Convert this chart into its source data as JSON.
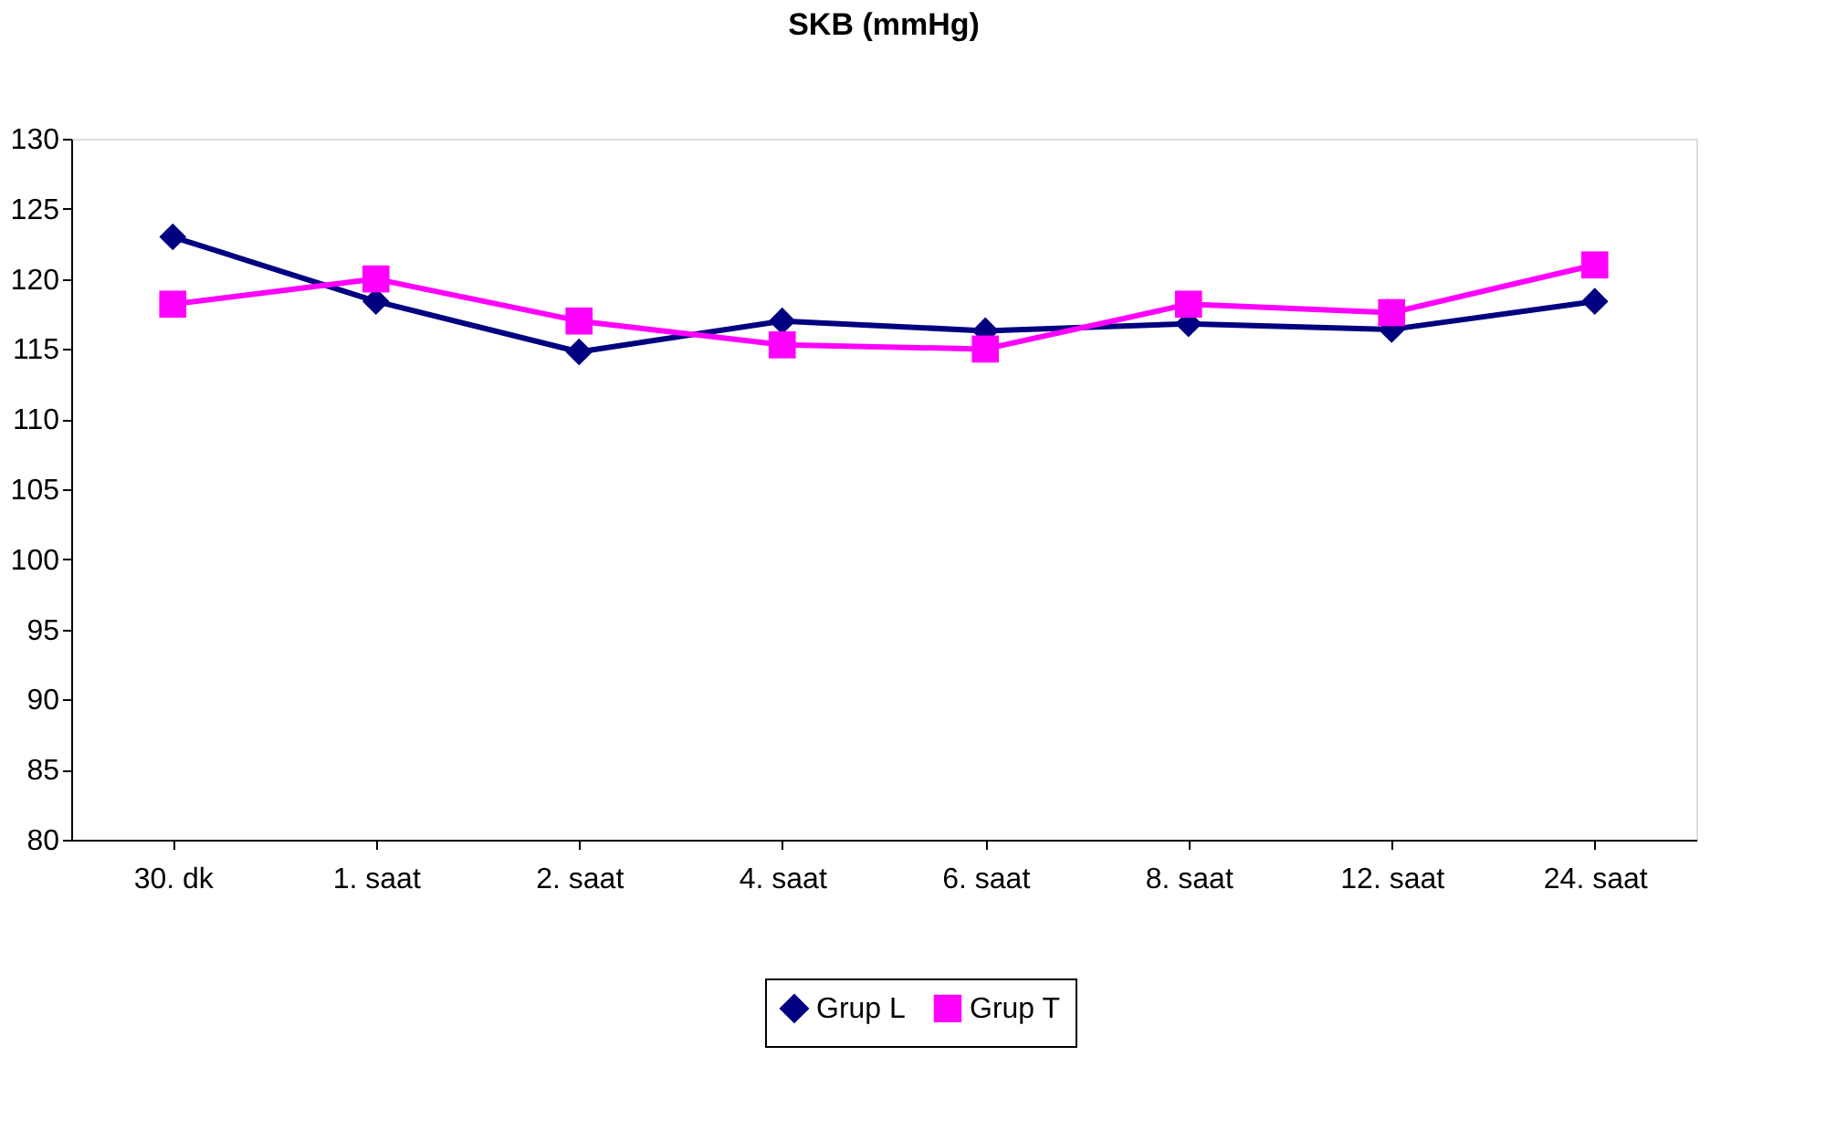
{
  "chart_data": {
    "type": "line",
    "title": "SKB (mmHg)",
    "categories": [
      "30. dk",
      "1. saat",
      "2. saat",
      "4. saat",
      "6. saat",
      "8. saat",
      "12. saat",
      "24. saat"
    ],
    "series": [
      {
        "name": "Grup L",
        "color": "#000080",
        "marker": "diamond",
        "values": [
          123.0,
          118.4,
          114.8,
          117.0,
          116.3,
          116.8,
          116.4,
          118.4
        ]
      },
      {
        "name": "Grup T",
        "color": "#ff00ff",
        "marker": "square",
        "values": [
          118.2,
          120.0,
          117.0,
          115.3,
          115.0,
          118.2,
          117.6,
          121.0
        ]
      }
    ],
    "ylim": [
      80,
      130
    ],
    "yticks": [
      80,
      85,
      90,
      95,
      100,
      105,
      110,
      115,
      120,
      125,
      130
    ],
    "grid": false,
    "legend": "bottom",
    "line_style": "solid"
  }
}
